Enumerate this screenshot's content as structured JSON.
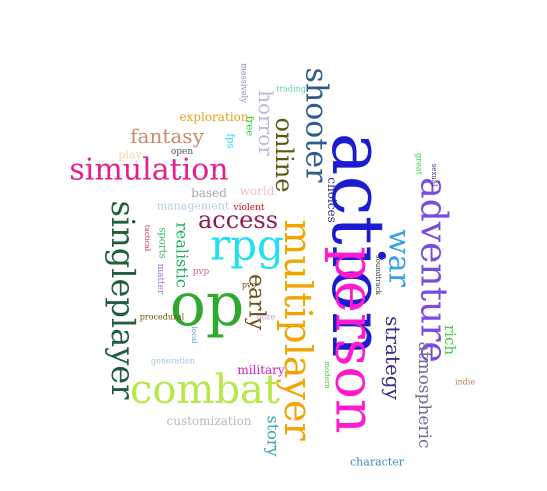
{
  "words": [
    {
      "text": "action",
      "color": "#1b1bd0",
      "weight": 100
    },
    {
      "text": "person",
      "color": "#ff19cf",
      "weight": 90
    },
    {
      "text": "op",
      "color": "#2ea82e",
      "weight": 85
    },
    {
      "text": "multiplayer",
      "color": "#f0a500",
      "weight": 75
    },
    {
      "text": "adventure",
      "color": "#7a4be0",
      "weight": 70
    },
    {
      "text": "rpg",
      "color": "#22e0f0",
      "weight": 68
    },
    {
      "text": "combat",
      "color": "#b6e84a",
      "weight": 66
    },
    {
      "text": "simulation",
      "color": "#e81e8a",
      "weight": 62
    },
    {
      "text": "singleplayer",
      "color": "#1f5f3a",
      "weight": 60
    },
    {
      "text": "shooter",
      "color": "#2f5b8c",
      "weight": 58
    },
    {
      "text": "war",
      "color": "#35a0e8",
      "weight": 52
    },
    {
      "text": "online",
      "color": "#5a5a12",
      "weight": 44
    },
    {
      "text": "access",
      "color": "#8b1d52",
      "weight": 42
    },
    {
      "text": "early",
      "color": "#6b4e10",
      "weight": 40
    },
    {
      "text": "strategy",
      "color": "#3e2a86",
      "weight": 38
    },
    {
      "text": "atmospheric",
      "color": "#6e6e90",
      "weight": 34
    },
    {
      "text": "fantasy",
      "color": "#c88a6a",
      "weight": 30
    },
    {
      "text": "horror",
      "color": "#c0b6da",
      "weight": 30
    },
    {
      "text": "story",
      "color": "#38a8a8",
      "weight": 26
    },
    {
      "text": "realistic",
      "color": "#1fae5a",
      "weight": 24
    },
    {
      "text": "rich",
      "color": "#3ecf3e",
      "weight": 22
    },
    {
      "text": "choices",
      "color": "#2a2a8c",
      "weight": 18
    },
    {
      "text": "exploration",
      "color": "#e8a01e",
      "weight": 18
    },
    {
      "text": "military",
      "color": "#c81ecf",
      "weight": 16
    },
    {
      "text": "character",
      "color": "#3a8ac0",
      "weight": 14
    },
    {
      "text": "customization",
      "color": "#b8b8b8",
      "weight": 14
    },
    {
      "text": "management",
      "color": "#b8cce0",
      "weight": 14
    },
    {
      "text": "based",
      "color": "#a8a8a8",
      "weight": 14
    },
    {
      "text": "world",
      "color": "#f0c0d8",
      "weight": 14
    },
    {
      "text": "sports",
      "color": "#33b86a",
      "weight": 12
    },
    {
      "text": "play",
      "color": "#f0d8a0",
      "weight": 12
    },
    {
      "text": "fps",
      "color": "#22d8f0",
      "weight": 12
    },
    {
      "text": "free",
      "color": "#2ec82e",
      "weight": 10
    },
    {
      "text": "open",
      "color": "#555555",
      "weight": 10
    },
    {
      "text": "violent",
      "color": "#cc1111",
      "weight": 10
    },
    {
      "text": "matter",
      "color": "#9a6ad0",
      "weight": 10
    },
    {
      "text": "procedural",
      "color": "#6a5a00",
      "weight": 9
    },
    {
      "text": "pvp",
      "color": "#e05a8a",
      "weight": 9
    },
    {
      "text": "pve",
      "color": "#6a3a22",
      "weight": 9
    },
    {
      "text": "gore",
      "color": "#c0a0c8",
      "weight": 9
    },
    {
      "text": "great",
      "color": "#3ecf3e",
      "weight": 9
    },
    {
      "text": "sexual",
      "color": "#3a3a8c",
      "weight": 8
    },
    {
      "text": "soundtrack",
      "color": "#3a3a3a",
      "weight": 8
    },
    {
      "text": "trading",
      "color": "#5ad0a8",
      "weight": 8
    },
    {
      "text": "massively",
      "color": "#8a8ab8",
      "weight": 8
    },
    {
      "text": "tactical",
      "color": "#cc2244",
      "weight": 8
    },
    {
      "text": "local",
      "color": "#5a9ad0",
      "weight": 8
    },
    {
      "text": "generation",
      "color": "#a8c0d8",
      "weight": 8
    },
    {
      "text": "modern",
      "color": "#3ecf3e",
      "weight": 8
    },
    {
      "text": "indie",
      "color": "#c87a5a",
      "weight": 8
    }
  ]
}
